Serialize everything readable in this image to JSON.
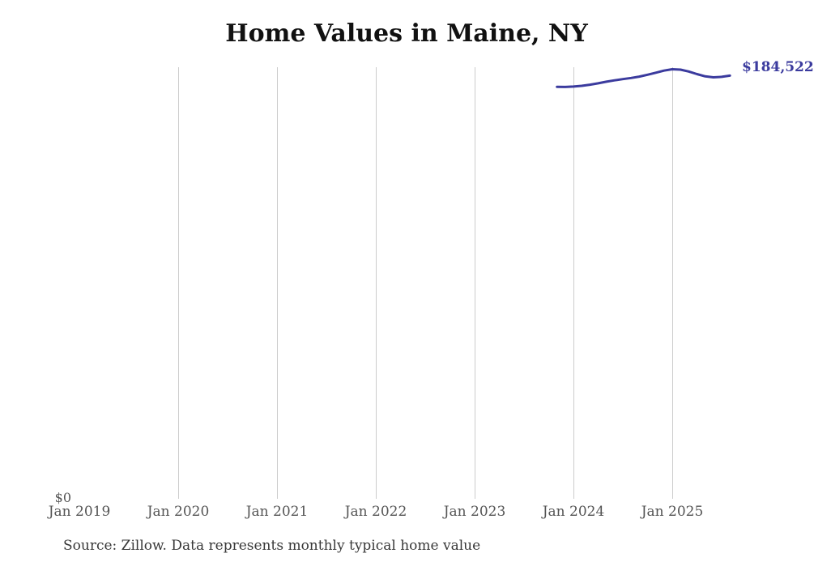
{
  "title": "Home Values in Maine, NY",
  "source_note": "Source: Zillow. Data represents monthly typical home value",
  "colors": {
    "line": "#3b3b9e",
    "end_label": "#3b3b9e",
    "gridline": "#cccccc",
    "tick_label": "#555555",
    "title_text": "#111111",
    "source_text": "#383838",
    "background": "#ffffff"
  },
  "chart_data": {
    "type": "line",
    "title": "Home Values in Maine, NY",
    "xlabel": "",
    "ylabel": "",
    "x_ticks": [
      "Jan 2019",
      "Jan 2020",
      "Jan 2021",
      "Jan 2022",
      "Jan 2023",
      "Jan 2024",
      "Jan 2025"
    ],
    "y_ticks": [
      "$0"
    ],
    "ylim": [
      0,
      188000
    ],
    "grid": "vertical-only",
    "legend": "none",
    "end_label": "$184,522",
    "series": [
      {
        "x": [
          "Nov 2023",
          "Dec 2023",
          "Jan 2024",
          "Feb 2024",
          "Mar 2024",
          "Apr 2024",
          "May 2024",
          "Jun 2024",
          "Jul 2024",
          "Aug 2024",
          "Sep 2024",
          "Oct 2024",
          "Nov 2024",
          "Dec 2024",
          "Jan 2025",
          "Feb 2025",
          "Mar 2025",
          "Apr 2025",
          "May 2025",
          "Jun 2025",
          "Jul 2025",
          "Aug 2025"
        ],
        "values": [
          179700,
          179600,
          179800,
          180100,
          180600,
          181200,
          181900,
          182500,
          183000,
          183500,
          184100,
          184900,
          185800,
          186700,
          187300,
          187100,
          186300,
          185200,
          184200,
          183800,
          184000,
          184522
        ]
      }
    ]
  }
}
